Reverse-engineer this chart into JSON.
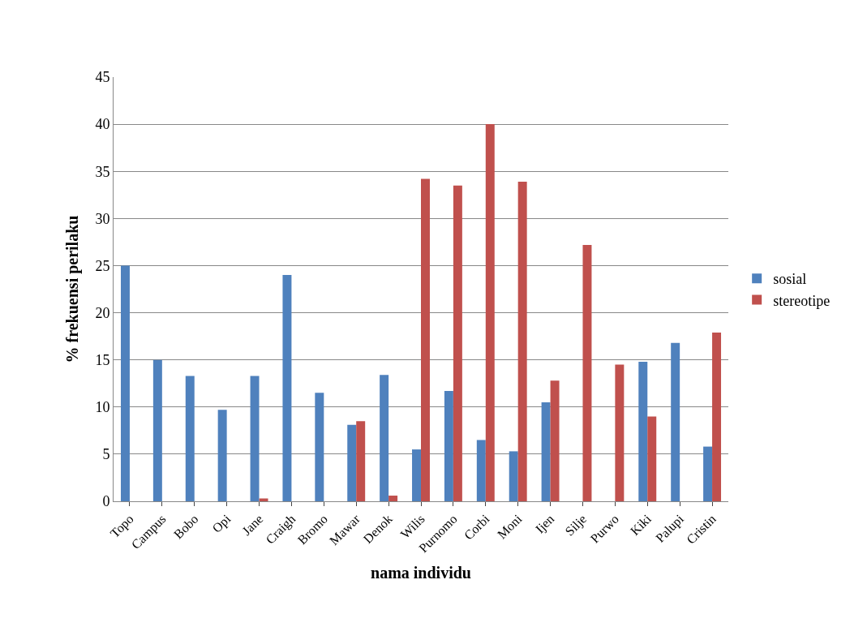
{
  "chart_data": {
    "type": "bar",
    "xlabel": "nama individu",
    "ylabel": "% frekuensi perilaku",
    "categories": [
      "Topo",
      "Campus",
      "Bobo",
      "Opi",
      "Jane",
      "Craigh",
      "Bromo",
      "Mawar",
      "Denok",
      "Wilis",
      "Purnomo",
      "Corbi",
      "Moni",
      "Ijen",
      "Silje",
      "Purwo",
      "Kiki",
      "Palupi",
      "Cristin"
    ],
    "series": [
      {
        "name": "sosial",
        "color": "#4f81bd",
        "values": [
          25,
          15,
          13.3,
          9.7,
          13.3,
          24,
          11.5,
          8.1,
          13.4,
          5.5,
          11.7,
          6.5,
          5.3,
          10.5,
          null,
          null,
          14.8,
          16.8,
          5.8
        ]
      },
      {
        "name": "stereotipe",
        "color": "#c0504d",
        "values": [
          null,
          null,
          null,
          null,
          0.3,
          null,
          null,
          8.5,
          0.6,
          34.2,
          33.5,
          40,
          33.9,
          12.8,
          27.2,
          14.5,
          9.0,
          null,
          17.9
        ]
      }
    ],
    "ylim": [
      0,
      45
    ],
    "yticks": [
      0,
      5,
      10,
      15,
      20,
      25,
      30,
      35,
      40,
      45
    ],
    "grid": "y",
    "legend": "right"
  }
}
